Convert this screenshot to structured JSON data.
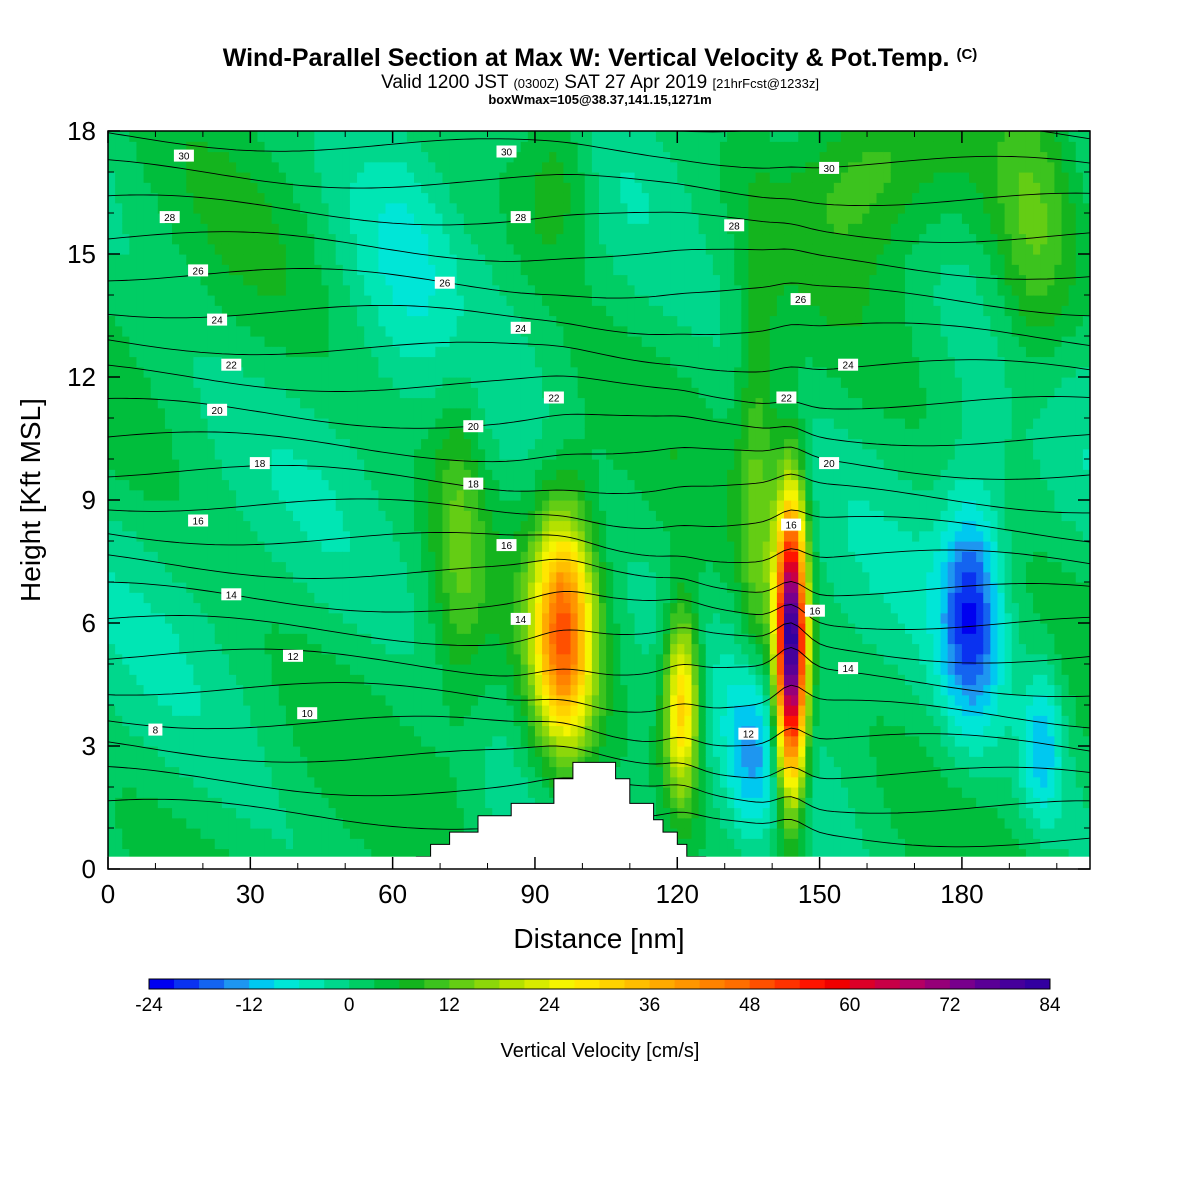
{
  "chart_data": {
    "type": "heatmap",
    "title": "Wind-Parallel Section at Max W: Vertical Velocity & Pot.Temp.",
    "title_mark": "(C)",
    "subtitle_pre": "Valid 1200 JST",
    "subtitle_utc": "(0300Z)",
    "subtitle_date": "SAT 27 Apr 2019",
    "subtitle_fcst": "[21hrFcst@1233z]",
    "subtitle2": "boxWmax=105@38.37,141.15,1271m",
    "xlabel": "Distance [nm]",
    "ylabel": "Height [Kft MSL]",
    "xlim": [
      0,
      207
    ],
    "ylim": [
      0,
      18
    ],
    "xticks": [
      0,
      30,
      60,
      90,
      120,
      150,
      180
    ],
    "yticks": [
      0,
      3,
      6,
      9,
      12,
      15,
      18
    ],
    "colorbar": {
      "label": "Vertical Velocity [cm/s]",
      "ticks": [
        -24,
        -12,
        0,
        12,
        24,
        36,
        48,
        60,
        72,
        84
      ],
      "levels": [
        -24,
        -21,
        -18,
        -15,
        -12,
        -9,
        -6,
        -3,
        0,
        3,
        6,
        9,
        12,
        15,
        18,
        21,
        24,
        27,
        30,
        33,
        36,
        39,
        42,
        45,
        48,
        51,
        54,
        57,
        60,
        63,
        66,
        69,
        72,
        75,
        78,
        81,
        84
      ],
      "colors": [
        "#0000f0",
        "#0a32f0",
        "#1464f0",
        "#1e96f0",
        "#00c8f0",
        "#00e6d7",
        "#00e6b4",
        "#00d78c",
        "#00cd64",
        "#00be3c",
        "#14b41e",
        "#3cc31e",
        "#64cd14",
        "#8cd70a",
        "#b4e100",
        "#d7eb00",
        "#f5f500",
        "#ffe600",
        "#ffd200",
        "#ffbe00",
        "#ffaa00",
        "#ff9600",
        "#ff8200",
        "#ff6e00",
        "#ff5000",
        "#ff3200",
        "#ff1400",
        "#f00000",
        "#dc0028",
        "#c80046",
        "#b40064",
        "#960078",
        "#78008c",
        "#5a0096",
        "#46009b",
        "#3200a0"
      ]
    },
    "theta_contour_labels": [
      {
        "value": "30",
        "x": 16,
        "y": 17.4
      },
      {
        "value": "30",
        "x": 84,
        "y": 17.5
      },
      {
        "value": "30",
        "x": 152,
        "y": 17.1
      },
      {
        "value": "28",
        "x": 13,
        "y": 15.9
      },
      {
        "value": "28",
        "x": 87,
        "y": 15.9
      },
      {
        "value": "28",
        "x": 132,
        "y": 15.7
      },
      {
        "value": "26",
        "x": 19,
        "y": 14.6
      },
      {
        "value": "26",
        "x": 71,
        "y": 14.3
      },
      {
        "value": "26",
        "x": 146,
        "y": 13.9
      },
      {
        "value": "24",
        "x": 23,
        "y": 13.4
      },
      {
        "value": "24",
        "x": 87,
        "y": 13.2
      },
      {
        "value": "24",
        "x": 156,
        "y": 12.3
      },
      {
        "value": "22",
        "x": 26,
        "y": 12.3
      },
      {
        "value": "22",
        "x": 94,
        "y": 11.5
      },
      {
        "value": "22",
        "x": 143,
        "y": 11.5
      },
      {
        "value": "20",
        "x": 23,
        "y": 11.2
      },
      {
        "value": "20",
        "x": 77,
        "y": 10.8
      },
      {
        "value": "20",
        "x": 152,
        "y": 9.9
      },
      {
        "value": "18",
        "x": 32,
        "y": 9.9
      },
      {
        "value": "18",
        "x": 77,
        "y": 9.4
      },
      {
        "value": "16",
        "x": 19,
        "y": 8.5
      },
      {
        "value": "16",
        "x": 84,
        "y": 7.9
      },
      {
        "value": "16",
        "x": 144,
        "y": 8.4
      },
      {
        "value": "16",
        "x": 149,
        "y": 6.3
      },
      {
        "value": "14",
        "x": 26,
        "y": 6.7
      },
      {
        "value": "14",
        "x": 87,
        "y": 6.1
      },
      {
        "value": "14",
        "x": 156,
        "y": 4.9
      },
      {
        "value": "12",
        "x": 39,
        "y": 5.2
      },
      {
        "value": "12",
        "x": 135,
        "y": 3.3
      },
      {
        "value": "10",
        "x": 42,
        "y": 3.8
      },
      {
        "value": "8",
        "x": 10,
        "y": 3.4
      }
    ],
    "w_features": [
      {
        "x": 96,
        "z": 5.8,
        "sx": 4.5,
        "sz": 2.0,
        "w": 45
      },
      {
        "x": 121,
        "z": 4.0,
        "sx": 2.6,
        "sz": 1.6,
        "w": 33
      },
      {
        "x": 144,
        "z": 5.5,
        "sx": 2.2,
        "sz": 2.4,
        "w": 84
      },
      {
        "x": 136,
        "z": 3.0,
        "sx": 3.6,
        "sz": 1.5,
        "w": -13
      },
      {
        "x": 182,
        "z": 6.3,
        "sx": 4.5,
        "sz": 2.0,
        "w": -20
      },
      {
        "x": 197,
        "z": 3.0,
        "sx": 3.0,
        "sz": 1.3,
        "w": -12
      },
      {
        "x": 62,
        "z": 16.0,
        "sx": 8,
        "sz": 2.5,
        "w": -5
      },
      {
        "x": 95,
        "z": 17.0,
        "sx": 6,
        "sz": 1.5,
        "w": 9
      },
      {
        "x": 160,
        "z": 17.0,
        "sx": 10,
        "sz": 1.5,
        "w": 10
      },
      {
        "x": 137,
        "z": 9.0,
        "sx": 3,
        "sz": 4,
        "w": 11
      },
      {
        "x": 74,
        "z": 8.0,
        "sx": 4,
        "sz": 3,
        "w": 9
      },
      {
        "x": 30,
        "z": 14.0,
        "sx": 12,
        "sz": 3,
        "w": 2
      },
      {
        "x": 195,
        "z": 15.0,
        "sx": 6,
        "sz": 3,
        "w": 9
      }
    ],
    "terrain": [
      [
        65,
        0.3
      ],
      [
        68,
        0.6
      ],
      [
        72,
        0.9
      ],
      [
        78,
        1.3
      ],
      [
        85,
        1.6
      ],
      [
        94,
        2.2
      ],
      [
        98,
        2.6
      ],
      [
        107,
        2.2
      ],
      [
        110,
        1.6
      ],
      [
        115,
        1.2
      ],
      [
        117,
        0.9
      ],
      [
        120,
        0.6
      ],
      [
        122,
        0.3
      ],
      [
        126,
        0
      ]
    ]
  }
}
